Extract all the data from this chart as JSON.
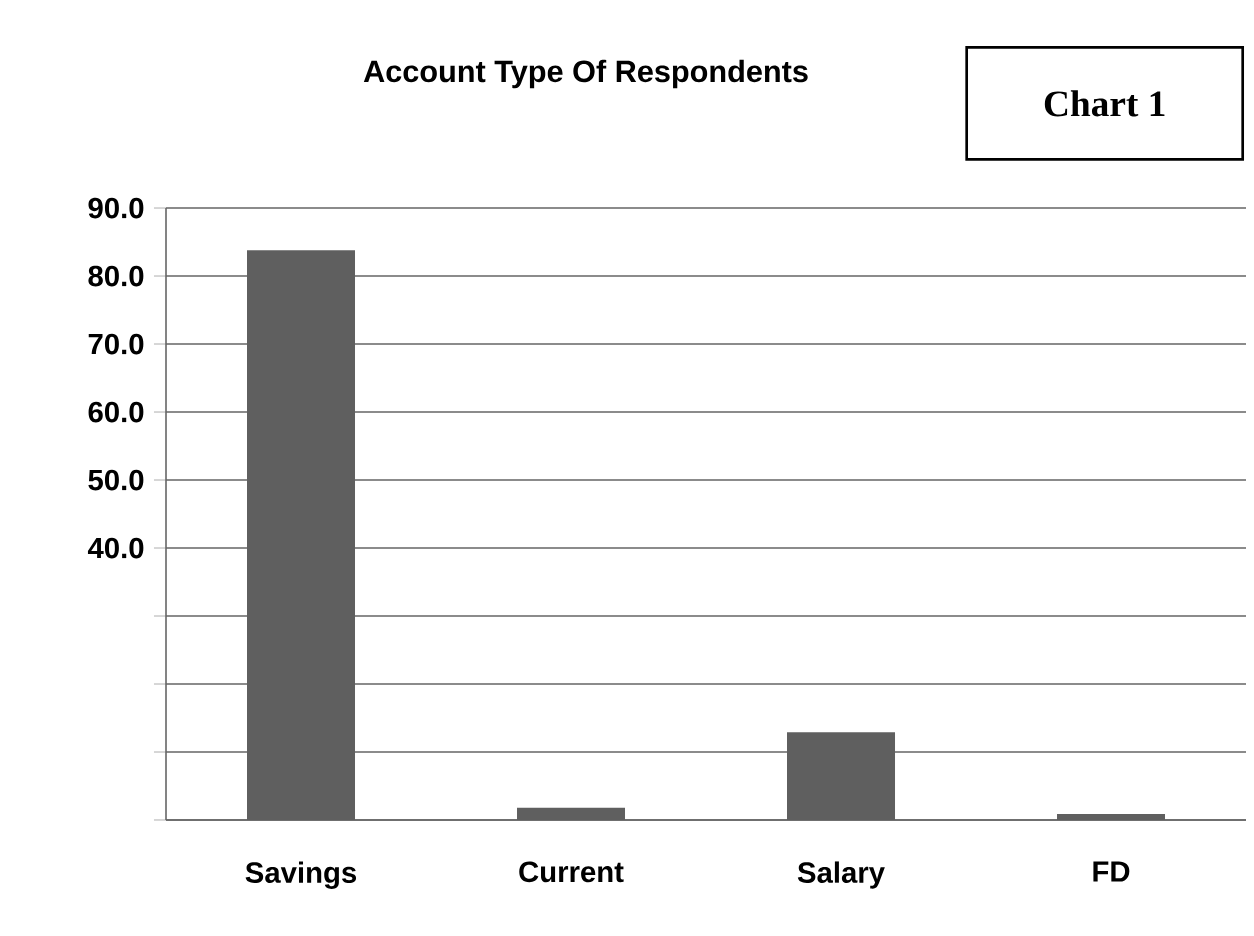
{
  "chart_data": {
    "type": "bar",
    "title": "Account Type Of Respondents",
    "annotations": [
      "Chart 1"
    ],
    "categories": [
      "Savings",
      "Current",
      "Salary",
      "FD"
    ],
    "values": [
      83.8,
      1.8,
      12.9,
      0.9
    ],
    "color": "#5f5f5f",
    "ylim": [
      0,
      90
    ],
    "yticks": [
      {
        "value": 0,
        "label": null
      },
      {
        "value": 10,
        "label": null
      },
      {
        "value": 20,
        "label": null
      },
      {
        "value": 30,
        "label": null
      },
      {
        "value": 40,
        "label": "40.0"
      },
      {
        "value": 50,
        "label": "50.0"
      },
      {
        "value": 60,
        "label": "60.0"
      },
      {
        "value": 70,
        "label": "70.0"
      },
      {
        "value": 80,
        "label": "80.0"
      },
      {
        "value": 90,
        "label": "90.0"
      }
    ],
    "grid": "y"
  }
}
